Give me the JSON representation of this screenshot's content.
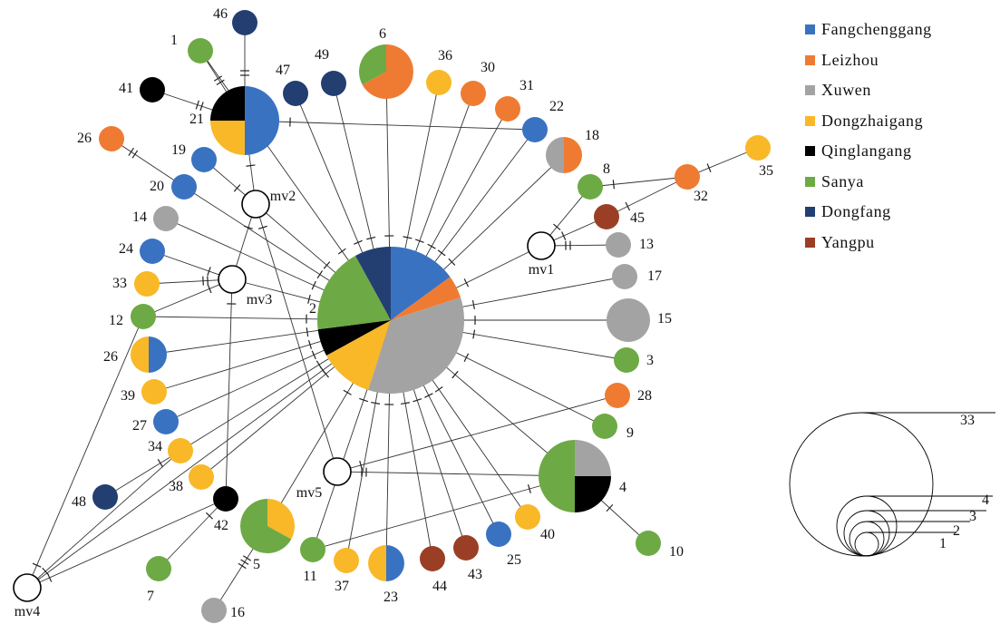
{
  "legend": [
    {
      "name": "Fangchenggang",
      "color": "#3a72c2"
    },
    {
      "name": "Leizhou",
      "color": "#ef7b32"
    },
    {
      "name": "Xuwen",
      "color": "#a3a3a3"
    },
    {
      "name": "Dongzhaigang",
      "color": "#f8b828"
    },
    {
      "name": "Qinglangang",
      "color": "#000000"
    },
    {
      "name": "Sanya",
      "color": "#6daa45"
    },
    {
      "name": "Dongfang",
      "color": "#233e70"
    },
    {
      "name": "Yangpu",
      "color": "#9a3f25"
    }
  ],
  "haplotypes": [
    {
      "id": "h2",
      "label": "2",
      "slices": [
        {
          "pop": "Fangchenggang",
          "fraction": 0.15
        },
        {
          "pop": "Leizhou",
          "fraction": 0.05
        },
        {
          "pop": "Xuwen",
          "fraction": 0.35
        },
        {
          "pop": "Dongzhaigang",
          "fraction": 0.12
        },
        {
          "pop": "Qinglangang",
          "fraction": 0.06
        },
        {
          "pop": "Sanya",
          "fraction": 0.19
        },
        {
          "pop": "Dongfang",
          "fraction": 0.08
        }
      ]
    },
    {
      "id": "h1",
      "label": "1",
      "slices": [
        {
          "pop": "Sanya",
          "fraction": 1
        }
      ]
    },
    {
      "id": "h3",
      "label": "3",
      "slices": [
        {
          "pop": "Sanya",
          "fraction": 1
        }
      ]
    },
    {
      "id": "h4",
      "label": "4",
      "slices": [
        {
          "pop": "Xuwen",
          "fraction": 0.25
        },
        {
          "pop": "Qinglangang",
          "fraction": 0.25
        },
        {
          "pop": "Sanya",
          "fraction": 0.5
        }
      ]
    },
    {
      "id": "h5",
      "label": "5",
      "slices": [
        {
          "pop": "Dongzhaigang",
          "fraction": 0.33
        },
        {
          "pop": "Sanya",
          "fraction": 0.67
        }
      ]
    },
    {
      "id": "h6",
      "label": "6",
      "slices": [
        {
          "pop": "Leizhou",
          "fraction": 0.67
        },
        {
          "pop": "Sanya",
          "fraction": 0.33
        }
      ]
    },
    {
      "id": "h7",
      "label": "7",
      "slices": [
        {
          "pop": "Sanya",
          "fraction": 1
        }
      ]
    },
    {
      "id": "h8",
      "label": "8",
      "slices": [
        {
          "pop": "Sanya",
          "fraction": 1
        }
      ]
    },
    {
      "id": "h9",
      "label": "9",
      "slices": [
        {
          "pop": "Sanya",
          "fraction": 1
        }
      ]
    },
    {
      "id": "h10",
      "label": "10",
      "slices": [
        {
          "pop": "Sanya",
          "fraction": 1
        }
      ]
    },
    {
      "id": "h11",
      "label": "11",
      "slices": [
        {
          "pop": "Sanya",
          "fraction": 1
        }
      ]
    },
    {
      "id": "h12",
      "label": "12",
      "slices": [
        {
          "pop": "Sanya",
          "fraction": 1
        }
      ]
    },
    {
      "id": "h13",
      "label": "13",
      "slices": [
        {
          "pop": "Xuwen",
          "fraction": 1
        }
      ]
    },
    {
      "id": "h14",
      "label": "14",
      "slices": [
        {
          "pop": "Xuwen",
          "fraction": 1
        }
      ]
    },
    {
      "id": "h15",
      "label": "15",
      "slices": [
        {
          "pop": "Xuwen",
          "fraction": 1
        }
      ]
    },
    {
      "id": "h16",
      "label": "16",
      "slices": [
        {
          "pop": "Xuwen",
          "fraction": 1
        }
      ]
    },
    {
      "id": "h17",
      "label": "17",
      "slices": [
        {
          "pop": "Xuwen",
          "fraction": 1
        }
      ]
    },
    {
      "id": "h18",
      "label": "18",
      "slices": [
        {
          "pop": "Leizhou",
          "fraction": 0.5
        },
        {
          "pop": "Xuwen",
          "fraction": 0.5
        }
      ]
    },
    {
      "id": "h19",
      "label": "19",
      "slices": [
        {
          "pop": "Fangchenggang",
          "fraction": 1
        }
      ]
    },
    {
      "id": "h20",
      "label": "20",
      "slices": [
        {
          "pop": "Fangchenggang",
          "fraction": 1
        }
      ]
    },
    {
      "id": "h21",
      "label": "21",
      "slices": [
        {
          "pop": "Fangchenggang",
          "fraction": 0.5
        },
        {
          "pop": "Dongzhaigang",
          "fraction": 0.25
        },
        {
          "pop": "Qinglangang",
          "fraction": 0.25
        }
      ]
    },
    {
      "id": "h22",
      "label": "22",
      "slices": [
        {
          "pop": "Fangchenggang",
          "fraction": 1
        }
      ]
    },
    {
      "id": "h23",
      "label": "23",
      "slices": [
        {
          "pop": "Fangchenggang",
          "fraction": 0.5
        },
        {
          "pop": "Dongzhaigang",
          "fraction": 0.5
        }
      ]
    },
    {
      "id": "h24",
      "label": "24",
      "slices": [
        {
          "pop": "Fangchenggang",
          "fraction": 1
        }
      ]
    },
    {
      "id": "h25",
      "label": "25",
      "slices": [
        {
          "pop": "Fangchenggang",
          "fraction": 1
        }
      ]
    },
    {
      "id": "h26a",
      "label": "26",
      "slices": [
        {
          "pop": "Leizhou",
          "fraction": 1
        }
      ]
    },
    {
      "id": "h26b",
      "label": "26",
      "slices": [
        {
          "pop": "Fangchenggang",
          "fraction": 0.5
        },
        {
          "pop": "Dongzhaigang",
          "fraction": 0.5
        }
      ]
    },
    {
      "id": "h27",
      "label": "27",
      "slices": [
        {
          "pop": "Fangchenggang",
          "fraction": 1
        }
      ]
    },
    {
      "id": "h28",
      "label": "28",
      "slices": [
        {
          "pop": "Leizhou",
          "fraction": 1
        }
      ]
    },
    {
      "id": "h30",
      "label": "30",
      "slices": [
        {
          "pop": "Leizhou",
          "fraction": 1
        }
      ]
    },
    {
      "id": "h31",
      "label": "31",
      "slices": [
        {
          "pop": "Leizhou",
          "fraction": 1
        }
      ]
    },
    {
      "id": "h32",
      "label": "32",
      "slices": [
        {
          "pop": "Leizhou",
          "fraction": 1
        }
      ]
    },
    {
      "id": "h33",
      "label": "33",
      "slices": [
        {
          "pop": "Dongzhaigang",
          "fraction": 1
        }
      ]
    },
    {
      "id": "h34",
      "label": "34",
      "slices": [
        {
          "pop": "Dongzhaigang",
          "fraction": 1
        }
      ]
    },
    {
      "id": "h35",
      "label": "35",
      "slices": [
        {
          "pop": "Dongzhaigang",
          "fraction": 1
        }
      ]
    },
    {
      "id": "h36",
      "label": "36",
      "slices": [
        {
          "pop": "Dongzhaigang",
          "fraction": 1
        }
      ]
    },
    {
      "id": "h37",
      "label": "37",
      "slices": [
        {
          "pop": "Dongzhaigang",
          "fraction": 1
        }
      ]
    },
    {
      "id": "h38",
      "label": "38",
      "slices": [
        {
          "pop": "Dongzhaigang",
          "fraction": 1
        }
      ]
    },
    {
      "id": "h39",
      "label": "39",
      "slices": [
        {
          "pop": "Dongzhaigang",
          "fraction": 1
        }
      ]
    },
    {
      "id": "h40",
      "label": "40",
      "slices": [
        {
          "pop": "Dongzhaigang",
          "fraction": 1
        }
      ]
    },
    {
      "id": "h41",
      "label": "41",
      "slices": [
        {
          "pop": "Qinglangang",
          "fraction": 1
        }
      ]
    },
    {
      "id": "h42",
      "label": "42",
      "slices": [
        {
          "pop": "Qinglangang",
          "fraction": 1
        }
      ]
    },
    {
      "id": "h43",
      "label": "43",
      "slices": [
        {
          "pop": "Yangpu",
          "fraction": 1
        }
      ]
    },
    {
      "id": "h44",
      "label": "44",
      "slices": [
        {
          "pop": "Yangpu",
          "fraction": 1
        }
      ]
    },
    {
      "id": "h45",
      "label": "45",
      "slices": [
        {
          "pop": "Yangpu",
          "fraction": 1
        }
      ]
    },
    {
      "id": "h46",
      "label": "46",
      "slices": [
        {
          "pop": "Dongfang",
          "fraction": 1
        }
      ]
    },
    {
      "id": "h47",
      "label": "47",
      "slices": [
        {
          "pop": "Dongfang",
          "fraction": 1
        }
      ]
    },
    {
      "id": "h48",
      "label": "48",
      "slices": [
        {
          "pop": "Dongfang",
          "fraction": 1
        }
      ]
    },
    {
      "id": "h49",
      "label": "49",
      "slices": [
        {
          "pop": "Dongfang",
          "fraction": 1
        }
      ]
    },
    {
      "id": "mv1",
      "label": "mv1",
      "slices": []
    },
    {
      "id": "mv2",
      "label": "mv2",
      "slices": []
    },
    {
      "id": "mv3",
      "label": "mv3",
      "slices": []
    },
    {
      "id": "mv4",
      "label": "mv4",
      "slices": []
    },
    {
      "id": "mv5",
      "label": "mv5",
      "slices": []
    }
  ],
  "links": [
    {
      "from": "h2",
      "to": "h1",
      "mutations": 1
    },
    {
      "from": "h2",
      "to": "h3",
      "mutations": 1
    },
    {
      "from": "h2",
      "to": "h4",
      "mutations": 1
    },
    {
      "from": "h2",
      "to": "h5",
      "mutations": 1
    },
    {
      "from": "h2",
      "to": "h6",
      "mutations": 1
    },
    {
      "from": "h2",
      "to": "h9",
      "mutations": 1
    },
    {
      "from": "h2",
      "to": "h11",
      "mutations": 1
    },
    {
      "from": "h2",
      "to": "h12",
      "mutations": 1
    },
    {
      "from": "h2",
      "to": "h14",
      "mutations": 1
    },
    {
      "from": "h2",
      "to": "h15",
      "mutations": 1
    },
    {
      "from": "h2",
      "to": "h17",
      "mutations": 1
    },
    {
      "from": "h2",
      "to": "h18",
      "mutations": 1
    },
    {
      "from": "h2",
      "to": "h20",
      "mutations": 1
    },
    {
      "from": "h2",
      "to": "h22",
      "mutations": 1
    },
    {
      "from": "h2",
      "to": "h23",
      "mutations": 1
    },
    {
      "from": "h2",
      "to": "h25",
      "mutations": 1
    },
    {
      "from": "h2",
      "to": "h26b",
      "mutations": 1
    },
    {
      "from": "h2",
      "to": "h27",
      "mutations": 1
    },
    {
      "from": "h2",
      "to": "h30",
      "mutations": 1
    },
    {
      "from": "h2",
      "to": "h31",
      "mutations": 1
    },
    {
      "from": "h2",
      "to": "h34",
      "mutations": 1
    },
    {
      "from": "h2",
      "to": "h36",
      "mutations": 1
    },
    {
      "from": "h2",
      "to": "h37",
      "mutations": 1
    },
    {
      "from": "h2",
      "to": "h38",
      "mutations": 1
    },
    {
      "from": "h2",
      "to": "h39",
      "mutations": 1
    },
    {
      "from": "h2",
      "to": "h40",
      "mutations": 1
    },
    {
      "from": "h2",
      "to": "h43",
      "mutations": 1
    },
    {
      "from": "h2",
      "to": "h44",
      "mutations": 1
    },
    {
      "from": "h2",
      "to": "h47",
      "mutations": 1
    },
    {
      "from": "h2",
      "to": "h49",
      "mutations": 1
    },
    {
      "from": "h2",
      "to": "mv1",
      "mutations": 1
    },
    {
      "from": "h2",
      "to": "mv2",
      "mutations": 1
    },
    {
      "from": "h2",
      "to": "mv3",
      "mutations": 1
    },
    {
      "from": "h2",
      "to": "mv4",
      "mutations": 1
    },
    {
      "from": "h21",
      "to": "h1",
      "mutations": 2
    },
    {
      "from": "h21",
      "to": "h41",
      "mutations": 2
    },
    {
      "from": "h21",
      "to": "h46",
      "mutations": 2
    },
    {
      "from": "h21",
      "to": "h22",
      "mutations": 1
    },
    {
      "from": "h21",
      "to": "mv2",
      "mutations": 1
    },
    {
      "from": "h26a",
      "to": "h20",
      "mutations": 2
    },
    {
      "from": "mv2",
      "to": "h19",
      "mutations": 1
    },
    {
      "from": "mv2",
      "to": "mv3",
      "mutations": 1
    },
    {
      "from": "mv2",
      "to": "mv5",
      "mutations": 1
    },
    {
      "from": "mv3",
      "to": "h24",
      "mutations": 1
    },
    {
      "from": "mv3",
      "to": "h33",
      "mutations": 2
    },
    {
      "from": "mv3",
      "to": "h12",
      "mutations": 1
    },
    {
      "from": "mv3",
      "to": "h42",
      "mutations": 1
    },
    {
      "from": "mv1",
      "to": "h8",
      "mutations": 1
    },
    {
      "from": "mv1",
      "to": "h13",
      "mutations": 2
    },
    {
      "from": "mv1",
      "to": "h45",
      "mutations": 1
    },
    {
      "from": "h8",
      "to": "h32",
      "mutations": 1
    },
    {
      "from": "h45",
      "to": "h32",
      "mutations": 1
    },
    {
      "from": "h32",
      "to": "h35",
      "mutations": 1
    },
    {
      "from": "mv5",
      "to": "h4",
      "mutations": 2
    },
    {
      "from": "mv5",
      "to": "h28",
      "mutations": 1
    },
    {
      "from": "h4",
      "to": "h10",
      "mutations": 1
    },
    {
      "from": "h4",
      "to": "h11",
      "mutations": 1
    },
    {
      "from": "h42",
      "to": "h7",
      "mutations": 1
    },
    {
      "from": "h5",
      "to": "h16",
      "mutations": 3
    },
    {
      "from": "mv4",
      "to": "h12",
      "mutations": 1
    },
    {
      "from": "mv4",
      "to": "h34",
      "mutations": 1
    },
    {
      "from": "mv4",
      "to": "h42",
      "mutations": 1
    },
    {
      "from": "h34",
      "to": "h48",
      "mutations": 1
    }
  ],
  "scale": {
    "labels": [
      "33",
      "4",
      "3",
      "2",
      "1"
    ]
  }
}
